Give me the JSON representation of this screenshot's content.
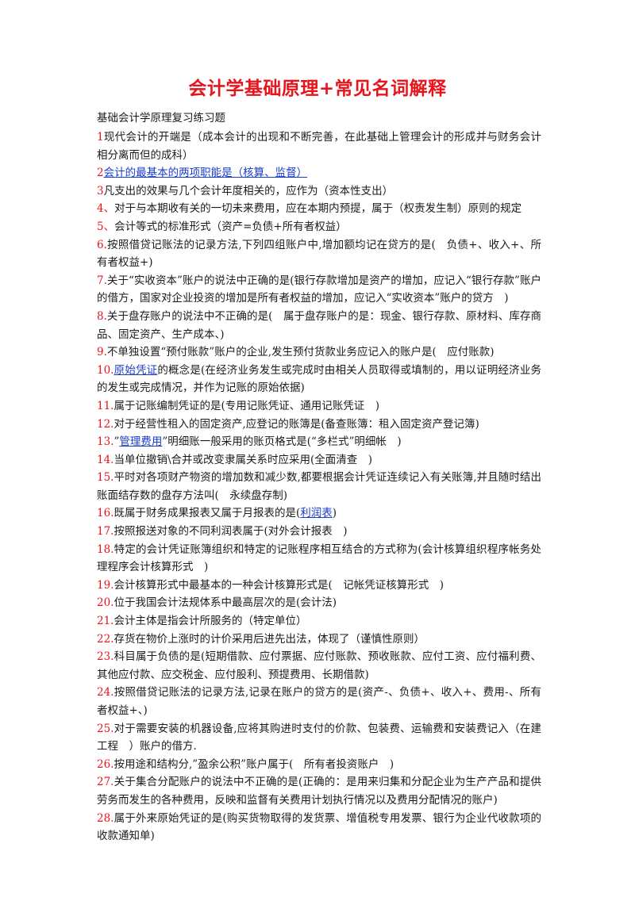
{
  "title": "会计学基础原理+常见名词解释",
  "subtitle": "基础会计学原理复习练习题",
  "items": [
    {
      "num": "1",
      "pre": "现代会计的开端是（成本会计的出现和不断完善，在此基础上管理会计的形成并与财务会计相分离而但的成科）",
      "link": "",
      "post": ""
    },
    {
      "num": "2",
      "pre": "",
      "link": "会计的最基本的两项职能是（核算、监督）",
      "post": ""
    },
    {
      "num": "3",
      "pre": "凡支出的效果与几个会计年度相关的，应作为（资本性支出）",
      "link": "",
      "post": ""
    },
    {
      "num": "4、",
      "pre": "对于与本期收有关的一切未来费用，应在本期内预提，属于（权责发生制）原则的规定",
      "link": "",
      "post": ""
    },
    {
      "num": "5、",
      "pre": "会计等式的标准形式（资产=负债+所有者权益）",
      "link": "",
      "post": ""
    },
    {
      "num": "6.",
      "pre": "按照借贷记账法的记录方法,下列四组账户中,增加额均记在贷方的是(　负债+、收入+、所有者权益+)",
      "link": "",
      "post": ""
    },
    {
      "num": "7.",
      "pre": "关于“实收资本”账户的说法中正确的是(银行存款增加是资产的增加，应记入“银行存款”账户的借方，国家对企业投资的增加是所有者权益的增加，应记入“实收资本”账户的贷方　)",
      "link": "",
      "post": ""
    },
    {
      "num": "8.",
      "pre": "关于盘存账户的说法中不正确的是(　属于盘存账户的是：现金、银行存款、原材料、库存商品、固定资产、生产成本、)",
      "link": "",
      "post": ""
    },
    {
      "num": "9.",
      "pre": "不单独设置“预付账款”账户的企业,发生预付货款业务应记入的账户是(　应付账款)",
      "link": "",
      "post": ""
    },
    {
      "num": "10.",
      "pre": "",
      "link": "原始凭证",
      "post": "的概念是(在经济业务发生或完成时由相关人员取得或填制的，用以证明经济业务的发生或完成情况，并作为记账的原始依据)"
    },
    {
      "num": "11.",
      "pre": "属于记账编制凭证的是(专用记账凭证、通用记账凭证　)",
      "link": "",
      "post": ""
    },
    {
      "num": "12.",
      "pre": "对于经营性租入的固定资产,应登记的账簿是(备查账簿：租入固定资产登记簿)",
      "link": "",
      "post": ""
    },
    {
      "num": "13.",
      "pre": "”",
      "link": "管理费用",
      "post": "”明细账一般采用的账页格式是(“多栏式”明细帐　)"
    },
    {
      "num": "14.",
      "pre": "当单位撤销\\合并或改变隶属关系时应采用(全面清查　)",
      "link": "",
      "post": ""
    },
    {
      "num": "15.",
      "pre": "平时对各项财产物资的增加数和减少数,都要根据会计凭证连续记入有关账簿,并且随时结出账面结存数的盘存方法叫(　永续盘存制)",
      "link": "",
      "post": ""
    },
    {
      "num": "16.",
      "pre": "既属于财务成果报表又属于月报表的是(",
      "link": "利润表",
      "post": ")"
    },
    {
      "num": "17.",
      "pre": "按照报送对象的不同利润表属于(对外会计报表　)",
      "link": "",
      "post": ""
    },
    {
      "num": "18.",
      "pre": "特定的会计凭证账簿组织和特定的记账程序相互结合的方式称为(会计核算组织程序帐务处理程序会计核算形式　)",
      "link": "",
      "post": ""
    },
    {
      "num": "19.",
      "pre": "会计核算形式中最基本的一种会计核算形式是(　记帐凭证核算形式　)",
      "link": "",
      "post": ""
    },
    {
      "num": "20.",
      "pre": "位于我国会计法规体系中最高层次的是(会计法)",
      "link": "",
      "post": ""
    },
    {
      "num": "21.",
      "pre": "会计主体是指会计所服务的（特定单位）",
      "link": "",
      "post": ""
    },
    {
      "num": "22.",
      "pre": "存货在物价上涨时的计价采用后进先出法，体现了（谨慎性原则）",
      "link": "",
      "post": ""
    },
    {
      "num": "23.",
      "pre": "科目属于负债的是(短期借款、应付票据、应付账款、预收账款、应付工资、应付福利费、其他应付款、应交税金、应付股利、预提费用、长期借款)",
      "link": "",
      "post": ""
    },
    {
      "num": "24.",
      "pre": "按照借贷记账法的记录方法,记录在账户的贷方的是(资产-、负债+、收入+、费用-、所有者权益+、)",
      "link": "",
      "post": ""
    },
    {
      "num": "25.",
      "pre": "对于需要安装的机器设备,应将其购进时支付的价款、包装费、运输费和安装费记入（在建工程　）账户的借方.",
      "link": "",
      "post": ""
    },
    {
      "num": "26.",
      "pre": "按用途和结构分,”盈余公积”账户属于(　所有者投资账户　)",
      "link": "",
      "post": ""
    },
    {
      "num": "27.",
      "pre": "关于集合分配账户的说法中不正确的是(正确的：是用来归集和分配企业为生产产品和提供劳务而发生的各种费用，反映和监督有关费用计划执行情况以及费用分配情况的账户)",
      "link": "",
      "post": ""
    },
    {
      "num": "28.",
      "pre": "属于外来原始凭证的是(购买货物取得的发货票、增值税专用发票、银行为企业代收款项的收款通知单)",
      "link": "",
      "post": ""
    }
  ]
}
